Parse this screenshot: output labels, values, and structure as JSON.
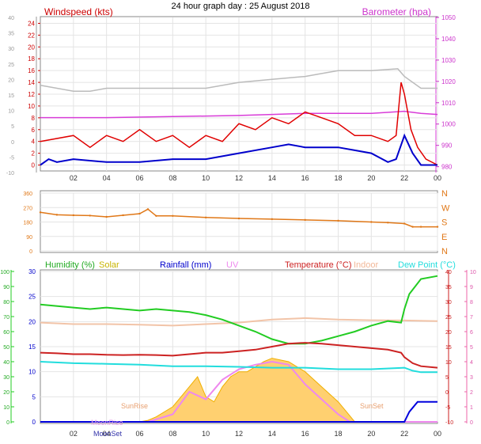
{
  "title": "24 hour graph day : 25 August 2018",
  "hour_labels": [
    "02",
    "04",
    "06",
    "08",
    "10",
    "12",
    "14",
    "16",
    "18",
    "20",
    "22",
    "00"
  ],
  "chart_data": [
    {
      "type": "line",
      "name": "wind-pressure",
      "x_range": [
        0,
        24
      ],
      "left_axis": {
        "label": "Windspeed (kts)",
        "ylim": [
          -1,
          25
        ],
        "ticks": [
          "0",
          "2",
          "4",
          "6",
          "8",
          "10",
          "12",
          "14",
          "16",
          "18",
          "20",
          "22",
          "24"
        ]
      },
      "outer_axis": {
        "ylim": [
          -10,
          40
        ],
        "ticks": [
          "-10",
          "-5",
          "0",
          "5",
          "10",
          "15",
          "20",
          "25",
          "30",
          "35",
          "40"
        ]
      },
      "right_axis": {
        "label": "Barometer (hpa)",
        "ylim": [
          978,
          1050
        ],
        "ticks": [
          "980",
          "990",
          "1000",
          "1010",
          "1020",
          "1030",
          "1040",
          "1050"
        ]
      },
      "series": [
        {
          "name": "Barometer (hpa)",
          "color": "#d83cd8",
          "x": [
            0,
            4,
            8,
            12,
            14,
            16,
            18,
            20,
            22,
            23,
            24
          ],
          "y": [
            1003,
            1003,
            1003.5,
            1004,
            1004.5,
            1005,
            1005,
            1005,
            1006,
            1005,
            1004.5
          ]
        },
        {
          "color": "#bbbbbb",
          "x": [
            0,
            2,
            3,
            4,
            6,
            8,
            10,
            12,
            14,
            16,
            17,
            18,
            20,
            21.6,
            22,
            23,
            24
          ],
          "y": [
            13.5,
            12.5,
            12.5,
            13,
            13,
            13,
            13,
            14,
            14.5,
            15,
            15.5,
            16,
            16,
            16.3,
            15,
            13,
            13
          ]
        },
        {
          "color": "#e00000",
          "x": [
            0,
            2,
            3,
            4,
            5,
            6,
            7,
            8,
            9,
            10,
            11,
            12,
            13,
            14,
            15,
            16,
            17,
            18,
            19,
            20,
            21,
            21.5,
            21.8,
            22,
            22.4,
            22.8,
            23.3,
            24
          ],
          "y": [
            4,
            5,
            3,
            5,
            4,
            6,
            4,
            5,
            3,
            5,
            4,
            7,
            6,
            8,
            7,
            9,
            8,
            7,
            5,
            5,
            4,
            5,
            14,
            12,
            6,
            3,
            1,
            0
          ]
        },
        {
          "color": "#0000cc",
          "x": [
            0,
            0.5,
            1,
            2,
            4,
            6,
            8,
            10,
            12,
            14,
            15,
            16,
            17,
            18,
            19,
            20,
            21,
            21.5,
            22,
            22.5,
            23,
            24
          ],
          "y": [
            0,
            1,
            0.5,
            1,
            0.5,
            0.5,
            1,
            1,
            2,
            3,
            3.5,
            3,
            3,
            3,
            2.5,
            2,
            0.5,
            1,
            5,
            2,
            0,
            0
          ]
        }
      ]
    },
    {
      "type": "scatter",
      "name": "wind-direction",
      "x_range": [
        0,
        24
      ],
      "left_axis": {
        "ylim": [
          0,
          360
        ],
        "ticks": [
          "0",
          "90",
          "180",
          "270",
          "360"
        ]
      },
      "right_axis": {
        "ticks": [
          "N",
          "E",
          "S",
          "W",
          "N"
        ]
      },
      "series": [
        {
          "color": "#e07818",
          "x": [
            0,
            1,
            2,
            3,
            4,
            5,
            6,
            6.5,
            7,
            8,
            10,
            12,
            14,
            16,
            18,
            20,
            21,
            22,
            22.5,
            23,
            24
          ],
          "y": [
            240,
            225,
            222,
            220,
            212,
            222,
            232,
            260,
            218,
            218,
            208,
            202,
            198,
            193,
            188,
            180,
            176,
            170,
            150,
            150,
            150
          ]
        }
      ]
    },
    {
      "type": "line",
      "name": "temperature-humidity",
      "x_range": [
        0,
        24
      ],
      "legend": [
        "Humidity (%)",
        "Solar",
        "Rainfall (mm)",
        "UV",
        "Temperature (°C)",
        "Indoor",
        "Dew Point (°C)"
      ],
      "axes": {
        "humidity": {
          "label": "Humidity (%)",
          "ylim": [
            0,
            100
          ],
          "ticks": [
            "0",
            "10",
            "20",
            "30",
            "40",
            "50",
            "60",
            "70",
            "80",
            "90",
            "100"
          ]
        },
        "rain": {
          "ylim": [
            0,
            30
          ],
          "ticks": [
            "0",
            "5",
            "10",
            "15",
            "20",
            "25",
            "30"
          ]
        },
        "temperature": {
          "ylim": [
            -10,
            40
          ],
          "ticks": [
            "-10",
            "-5",
            "0",
            "5",
            "10",
            "15",
            "20",
            "25",
            "30",
            "35",
            "40"
          ]
        },
        "uv": {
          "ylim": [
            0,
            10
          ],
          "ticks": [
            "0",
            "1",
            "2",
            "3",
            "4",
            "5",
            "6",
            "7",
            "8",
            "9",
            "10"
          ]
        }
      },
      "annotations": [
        "SunRise",
        "SunSet",
        "MoonRise",
        "MoonSet"
      ],
      "series": [
        {
          "name": "Humidity (%)",
          "color": "#22cc22",
          "axis": "humidity",
          "x": [
            0,
            2,
            3,
            4,
            5,
            6,
            7,
            8,
            9,
            10,
            11,
            12,
            13,
            14,
            15,
            16,
            17,
            18,
            19,
            20,
            21,
            21.8,
            22,
            22.3,
            23,
            24
          ],
          "y": [
            78,
            76,
            75,
            76,
            75,
            74,
            75,
            74,
            73,
            71,
            68,
            64,
            60,
            55,
            52,
            52,
            54,
            57,
            60,
            64,
            67,
            66,
            75,
            85,
            95,
            97
          ]
        },
        {
          "name": "Indoor",
          "color": "#f2c4a8",
          "axis": "temperature",
          "x": [
            0,
            2,
            4,
            6,
            8,
            10,
            12,
            14,
            16,
            18,
            20,
            22,
            24
          ],
          "y": [
            23,
            22.5,
            22.5,
            22.3,
            22,
            22.5,
            23,
            24,
            24.5,
            24,
            23.8,
            23.7,
            23.5
          ]
        },
        {
          "name": "Temperature (°C)",
          "color": "#cc2222",
          "axis": "temperature",
          "x": [
            0,
            1,
            2,
            3,
            4,
            5,
            6,
            7,
            8,
            9,
            10,
            11,
            12,
            13,
            14,
            15,
            16,
            17,
            18,
            19,
            20,
            21,
            21.8,
            22,
            22.5,
            23,
            24
          ],
          "y": [
            13,
            12.8,
            12.5,
            12.5,
            12.3,
            12.2,
            12.3,
            12.2,
            12,
            12.5,
            13,
            13,
            13.5,
            14,
            15,
            16,
            16.3,
            16,
            15.5,
            15,
            14.5,
            14,
            13,
            11.5,
            9.5,
            8.5,
            8
          ]
        },
        {
          "name": "Dew Point (°C)",
          "color": "#22dddd",
          "axis": "temperature",
          "x": [
            0,
            2,
            4,
            6,
            8,
            10,
            12,
            14,
            16,
            18,
            20,
            22,
            22.5,
            23,
            24
          ],
          "y": [
            10,
            9.5,
            9.3,
            9,
            8.5,
            8.5,
            8.3,
            8,
            8,
            7.5,
            7.5,
            8,
            7,
            6.5,
            6.5
          ]
        },
        {
          "name": "Solar",
          "color": "#f0b000",
          "fill": "#ffd070",
          "axis": "rain",
          "x": [
            0,
            6,
            6.5,
            7,
            8,
            9,
            9.5,
            10,
            10.5,
            11,
            11.5,
            12,
            12.5,
            13,
            13.5,
            14,
            15,
            16,
            17,
            18,
            18.5,
            19,
            24
          ],
          "y": [
            0,
            0,
            0.3,
            1,
            3,
            7,
            9,
            5,
            4,
            7,
            9,
            10,
            10,
            11,
            12,
            12.7,
            12,
            10,
            7,
            4,
            2,
            0,
            0
          ]
        },
        {
          "name": "UV",
          "color": "#ee88ee",
          "axis": "uv",
          "x": [
            0,
            6.5,
            8,
            9,
            10,
            11,
            12,
            13,
            14,
            15,
            16,
            17,
            18,
            18.7,
            24
          ],
          "y": [
            0,
            0,
            0.5,
            2,
            1.5,
            2.8,
            3.5,
            3.8,
            4,
            3.8,
            2.5,
            1.5,
            0.5,
            0,
            0
          ]
        },
        {
          "name": "Rainfall (mm)",
          "color": "#0000dd",
          "axis": "rain",
          "x": [
            0,
            21.8,
            22,
            22.3,
            22.8,
            23,
            24
          ],
          "y": [
            0,
            0,
            0,
            2,
            4,
            4,
            4
          ]
        }
      ]
    }
  ]
}
